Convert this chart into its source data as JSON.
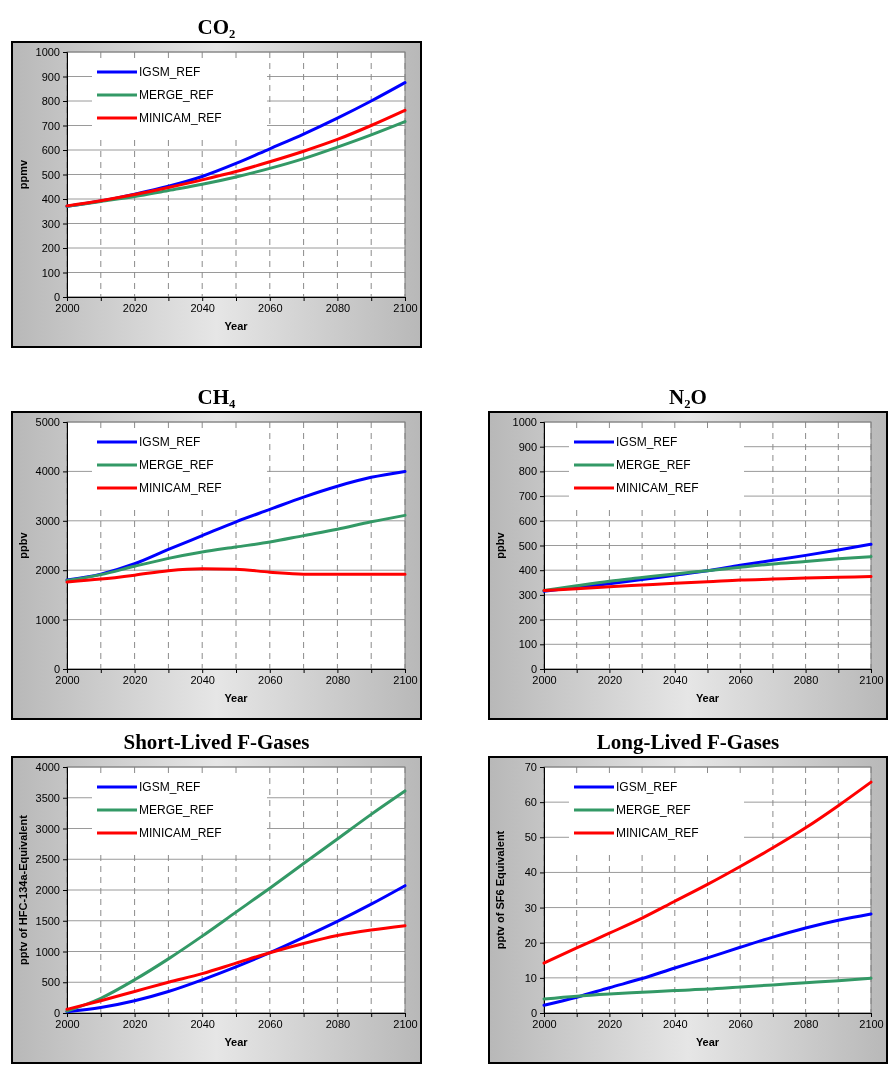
{
  "chart_data": [
    {
      "type": "line",
      "title": "CO₂",
      "xlabel": "Year",
      "ylabel": "ppmv",
      "x": [
        2000,
        2010,
        2020,
        2030,
        2040,
        2050,
        2060,
        2070,
        2080,
        2090,
        2100
      ],
      "xlim": [
        2000,
        2100
      ],
      "xticks": [
        2000,
        {
          "value": 2010,
          "label": null
        },
        2020,
        {
          "value": 2030,
          "label": null
        },
        2040,
        {
          "value": 2050,
          "label": null
        },
        2060,
        {
          "value": 2070,
          "label": null
        },
        2080,
        {
          "value": 2090,
          "label": null
        },
        2100
      ],
      "ylim": [
        0,
        1000
      ],
      "yticks": [
        0,
        100,
        200,
        300,
        400,
        500,
        600,
        700,
        800,
        900,
        1000
      ],
      "grid": true,
      "legend": "top left",
      "marker": "none",
      "line_style": "solid",
      "series": [
        {
          "name": "IGSM_REF",
          "color": "#0000ff",
          "values": [
            370,
            392,
            420,
            452,
            492,
            545,
            605,
            665,
            730,
            800,
            875
          ]
        },
        {
          "name": "MERGE_REF",
          "color": "#339966",
          "values": [
            370,
            390,
            410,
            435,
            460,
            490,
            525,
            565,
            612,
            662,
            716
          ]
        },
        {
          "name": "MINICAM_REF",
          "color": "#ff0000",
          "values": [
            372,
            393,
            418,
            447,
            478,
            512,
            552,
            595,
            643,
            700,
            762
          ]
        }
      ]
    },
    {
      "type": "line",
      "title": "CH₄",
      "xlabel": "Year",
      "ylabel": "ppbv",
      "x": [
        2000,
        2010,
        2020,
        2030,
        2040,
        2050,
        2060,
        2070,
        2080,
        2090,
        2100
      ],
      "xlim": [
        2000,
        2100
      ],
      "xticks": [
        2000,
        {
          "value": 2010,
          "label": null
        },
        2020,
        {
          "value": 2030,
          "label": null
        },
        2040,
        {
          "value": 2050,
          "label": null
        },
        2060,
        {
          "value": 2070,
          "label": null
        },
        2080,
        {
          "value": 2090,
          "label": null
        },
        2100
      ],
      "ylim": [
        0,
        5000
      ],
      "yticks": [
        0,
        1000,
        2000,
        3000,
        4000,
        5000
      ],
      "grid": true,
      "legend": "top left",
      "marker": "none",
      "line_style": "solid",
      "series": [
        {
          "name": "IGSM_REF",
          "color": "#0000ff",
          "values": [
            1800,
            1920,
            2130,
            2420,
            2700,
            2980,
            3230,
            3480,
            3700,
            3880,
            4000
          ]
        },
        {
          "name": "MERGE_REF",
          "color": "#339966",
          "values": [
            1790,
            1910,
            2080,
            2240,
            2370,
            2470,
            2570,
            2700,
            2830,
            2980,
            3110
          ]
        },
        {
          "name": "MINICAM_REF",
          "color": "#ff0000",
          "values": [
            1760,
            1820,
            1900,
            1990,
            2030,
            2020,
            1960,
            1920,
            1920,
            1920,
            1920
          ]
        }
      ]
    },
    {
      "type": "line",
      "title": "N₂O",
      "xlabel": "Year",
      "ylabel": "ppbv",
      "x": [
        2000,
        2010,
        2020,
        2030,
        2040,
        2050,
        2060,
        2070,
        2080,
        2090,
        2100
      ],
      "xlim": [
        2000,
        2100
      ],
      "xticks": [
        2000,
        {
          "value": 2010,
          "label": null
        },
        2020,
        {
          "value": 2030,
          "label": null
        },
        2040,
        {
          "value": 2050,
          "label": null
        },
        2060,
        {
          "value": 2070,
          "label": null
        },
        2080,
        {
          "value": 2090,
          "label": null
        },
        2100
      ],
      "ylim": [
        0,
        1000
      ],
      "yticks": [
        0,
        100,
        200,
        300,
        400,
        500,
        600,
        700,
        800,
        900,
        1000
      ],
      "grid": true,
      "legend": "top left",
      "marker": "none",
      "line_style": "solid",
      "series": [
        {
          "name": "IGSM_REF",
          "color": "#0000ff",
          "values": [
            315,
            330,
            345,
            362,
            380,
            398,
            420,
            440,
            460,
            482,
            505
          ]
        },
        {
          "name": "MERGE_REF",
          "color": "#339966",
          "values": [
            318,
            337,
            355,
            370,
            385,
            398,
            412,
            425,
            435,
            446,
            455
          ]
        },
        {
          "name": "MINICAM_REF",
          "color": "#ff0000",
          "values": [
            318,
            325,
            333,
            340,
            347,
            353,
            360,
            364,
            368,
            371,
            374
          ]
        }
      ]
    },
    {
      "type": "line",
      "title": "Short-Lived F-Gases",
      "xlabel": "Year",
      "ylabel": "pptv of HFC-134a-Equivalent",
      "x": [
        2000,
        2010,
        2020,
        2030,
        2040,
        2050,
        2060,
        2070,
        2080,
        2090,
        2100
      ],
      "xlim": [
        2000,
        2100
      ],
      "xticks": [
        2000,
        {
          "value": 2010,
          "label": null
        },
        2020,
        {
          "value": 2030,
          "label": null
        },
        2040,
        {
          "value": 2050,
          "label": null
        },
        2060,
        {
          "value": 2070,
          "label": null
        },
        2080,
        {
          "value": 2090,
          "label": null
        },
        2100
      ],
      "ylim": [
        0,
        4000
      ],
      "yticks": [
        0,
        500,
        1000,
        1500,
        2000,
        2500,
        3000,
        3500,
        4000
      ],
      "grid": true,
      "legend": "top left",
      "marker": "none",
      "line_style": "solid",
      "series": [
        {
          "name": "IGSM_REF",
          "color": "#0000ff",
          "values": [
            20,
            90,
            200,
            350,
            540,
            750,
            980,
            1230,
            1490,
            1770,
            2070
          ]
        },
        {
          "name": "MERGE_REF",
          "color": "#339966",
          "values": [
            30,
            240,
            540,
            880,
            1250,
            1640,
            2030,
            2430,
            2830,
            3230,
            3610
          ]
        },
        {
          "name": "MINICAM_REF",
          "color": "#ff0000",
          "values": [
            60,
            200,
            350,
            500,
            640,
            810,
            980,
            1130,
            1260,
            1350,
            1420
          ]
        }
      ]
    },
    {
      "type": "line",
      "title": "Long-Lived F-Gases",
      "xlabel": "Year",
      "ylabel": "pptv of SF6 Equivalent",
      "x": [
        2000,
        2010,
        2020,
        2030,
        2040,
        2050,
        2060,
        2070,
        2080,
        2090,
        2100
      ],
      "xlim": [
        2000,
        2100
      ],
      "xticks": [
        2000,
        {
          "value": 2010,
          "label": null
        },
        2020,
        {
          "value": 2030,
          "label": null
        },
        2040,
        {
          "value": 2050,
          "label": null
        },
        2060,
        {
          "value": 2070,
          "label": null
        },
        2080,
        {
          "value": 2090,
          "label": null
        },
        2100
      ],
      "ylim": [
        0,
        70
      ],
      "yticks": [
        0,
        10,
        20,
        30,
        40,
        50,
        60,
        70
      ],
      "grid": true,
      "legend": "top left",
      "marker": "none",
      "line_style": "solid",
      "series": [
        {
          "name": "IGSM_REF",
          "color": "#0000ff",
          "values": [
            2.2,
            4.5,
            7.2,
            9.8,
            12.8,
            15.7,
            18.7,
            21.6,
            24.2,
            26.4,
            28.2
          ]
        },
        {
          "name": "MERGE_REF",
          "color": "#339966",
          "values": [
            4,
            4.8,
            5.4,
            5.9,
            6.4,
            6.8,
            7.4,
            8,
            8.6,
            9.2,
            9.9
          ]
        },
        {
          "name": "MINICAM_REF",
          "color": "#ff0000",
          "values": [
            14.2,
            18.5,
            22.7,
            27,
            31.8,
            36.6,
            41.7,
            47,
            52.7,
            59,
            65.7
          ]
        }
      ]
    }
  ]
}
